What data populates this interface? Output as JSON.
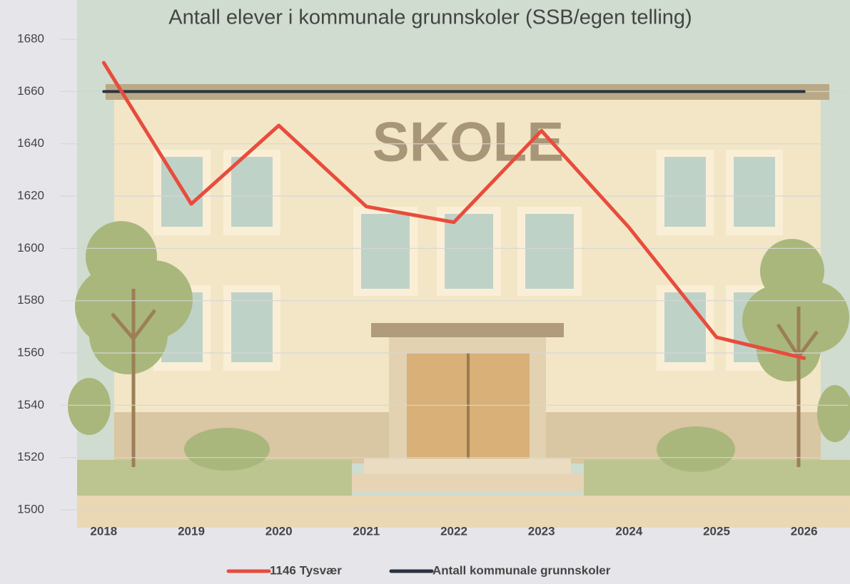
{
  "chart_data": {
    "type": "line",
    "title": "Antall elever i kommunale grunnskoler (SSB/egen telling)",
    "annotations": [
      "SKOLE"
    ],
    "categories": [
      "2018",
      "2019",
      "2020",
      "2021",
      "2022",
      "2023",
      "2024",
      "2025",
      "2026"
    ],
    "series": [
      {
        "name": "1146 Tysvær",
        "color": "#e84c3d",
        "values": [
          1671,
          1617,
          1647,
          1616,
          1610,
          1645,
          1608,
          1566,
          1558
        ]
      },
      {
        "name": "Antall kommunale grunnskoler",
        "color": "#2a3342",
        "values": [
          1660,
          1660,
          1660,
          1660,
          1660,
          1660,
          1660,
          1660,
          1660
        ]
      }
    ],
    "ylim": [
      1500,
      1680
    ],
    "yticks": [
      1500,
      1520,
      1540,
      1560,
      1580,
      1600,
      1620,
      1640,
      1660,
      1680
    ],
    "grid": true,
    "legend": "bottom"
  }
}
